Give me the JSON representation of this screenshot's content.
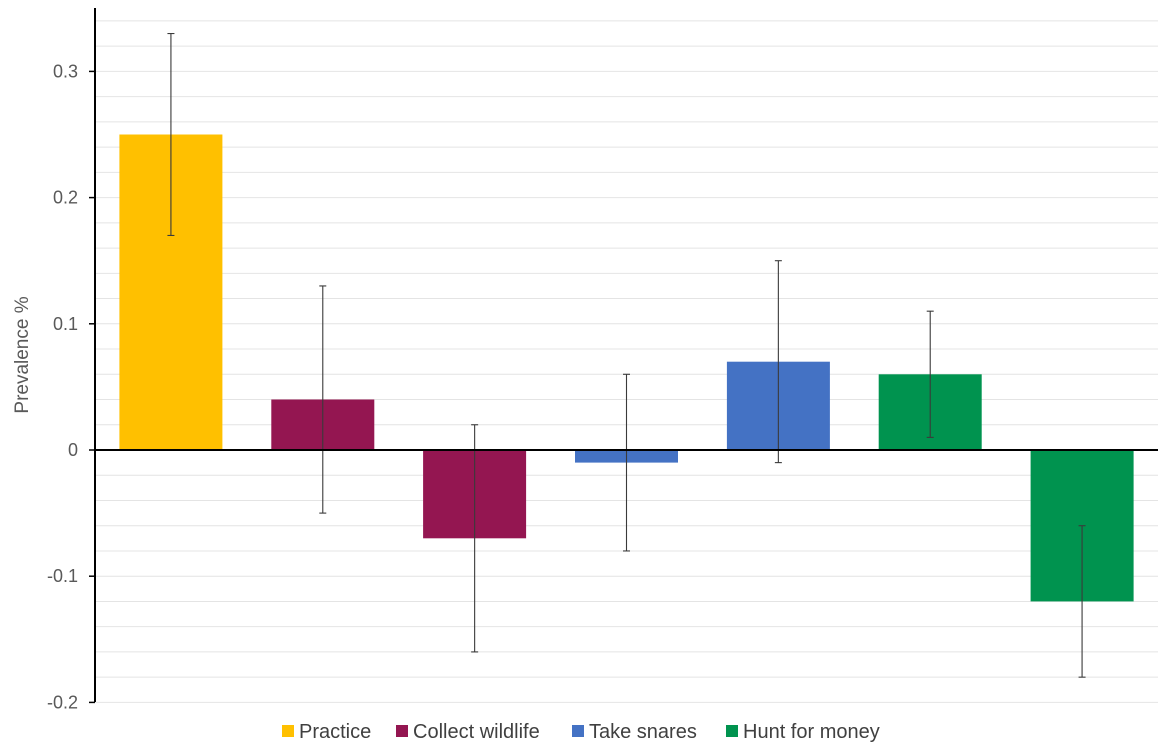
{
  "chart_data": {
    "type": "bar",
    "title": "",
    "xlabel": "",
    "ylabel": "Prevalence %",
    "ylim": [
      -0.2,
      0.35
    ],
    "yticks": [
      {
        "value": 0.3,
        "label": "0.3"
      },
      {
        "value": 0.2,
        "label": "0.2"
      },
      {
        "value": 0.1,
        "label": "0.1"
      },
      {
        "value": 0,
        "label": "0"
      },
      {
        "value": -0.1,
        "label": "-0.1"
      },
      {
        "value": -0.2,
        "label": "-0.2"
      }
    ],
    "minor_grid_step": 0.02,
    "grid": true,
    "legend_position": "bottom",
    "legend": [
      {
        "name": "Practice",
        "color": "#FFC000"
      },
      {
        "name": "Collect wildlife",
        "color": "#941651"
      },
      {
        "name": "Take snares",
        "color": "#4472C4"
      },
      {
        "name": "Hunt for money",
        "color": "#00934F"
      }
    ],
    "bars": [
      {
        "group": "Practice",
        "value": 0.25,
        "err_low": 0.17,
        "err_high": 0.33
      },
      {
        "group": "Collect wildlife",
        "value": 0.04,
        "err_low": -0.05,
        "err_high": 0.13
      },
      {
        "group": "Collect wildlife",
        "value": -0.07,
        "err_low": -0.16,
        "err_high": 0.02
      },
      {
        "group": "Take snares",
        "value": -0.01,
        "err_low": -0.08,
        "err_high": 0.06
      },
      {
        "group": "Take snares",
        "value": 0.07,
        "err_low": -0.01,
        "err_high": 0.15
      },
      {
        "group": "Hunt for money",
        "value": 0.06,
        "err_low": 0.01,
        "err_high": 0.11
      },
      {
        "group": "Hunt for money",
        "value": -0.12,
        "err_low": -0.18,
        "err_high": -0.06
      }
    ]
  }
}
